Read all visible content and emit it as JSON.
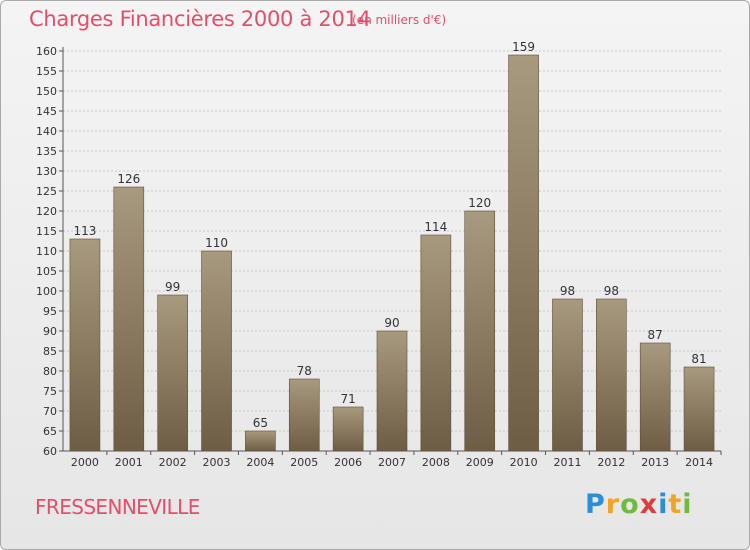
{
  "title": "Charges Financières 2000 à 2014",
  "subtitle": "(en milliers d'€)",
  "commune": "FRESSENNEVILLE",
  "logo": {
    "p": "P",
    "r": "r",
    "o": "o",
    "x": "x",
    "i1": "i",
    "t": "t",
    "i2": "i"
  },
  "colors": {
    "title": "#e0506a",
    "bar_top": "#a89a7e",
    "bar_bottom": "#6e5d45"
  },
  "chart_data": {
    "type": "bar",
    "categories": [
      "2000",
      "2001",
      "2002",
      "2003",
      "2004",
      "2005",
      "2006",
      "2007",
      "2008",
      "2009",
      "2010",
      "2011",
      "2012",
      "2013",
      "2014"
    ],
    "values": [
      113,
      126,
      99,
      110,
      65,
      78,
      71,
      90,
      114,
      120,
      159,
      98,
      98,
      87,
      81
    ],
    "ylim": [
      60,
      160
    ],
    "yticks": [
      60,
      65,
      70,
      75,
      80,
      85,
      90,
      95,
      100,
      105,
      110,
      115,
      120,
      125,
      130,
      135,
      140,
      145,
      150,
      155,
      160
    ],
    "grid": true
  }
}
